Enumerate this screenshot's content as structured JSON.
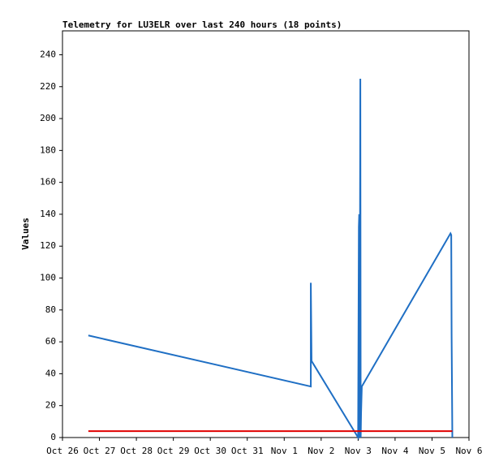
{
  "chart_data": {
    "type": "line",
    "title": "Telemetry for LU3ELR over last 240 hours (18 points)",
    "y_label": "Values",
    "series": [
      {
        "color": "#1f6fc4",
        "x": [
          0.7,
          6.72,
          6.72,
          6.74,
          8.0,
          8.02,
          8.03,
          8.04,
          8.06,
          8.07,
          8.08,
          8.1,
          10.5,
          10.52,
          10.53,
          10.55
        ],
        "values": [
          64,
          32,
          97,
          48,
          0,
          132,
          140,
          0,
          225,
          0,
          15,
          32,
          128,
          127,
          64,
          0
        ]
      },
      {
        "color": "#e00000",
        "x": [
          0.7,
          10.55
        ],
        "values": [
          4,
          4
        ]
      }
    ],
    "xlim": [
      0,
      11
    ],
    "xticks": [
      {
        "value": 0,
        "label": "Oct 26"
      },
      {
        "value": 1,
        "label": "Oct 27"
      },
      {
        "value": 2,
        "label": "Oct 28"
      },
      {
        "value": 3,
        "label": "Oct 29"
      },
      {
        "value": 4,
        "label": "Oct 30"
      },
      {
        "value": 5,
        "label": "Oct 31"
      },
      {
        "value": 6,
        "label": "Nov 1"
      },
      {
        "value": 7,
        "label": "Nov 2"
      },
      {
        "value": 8,
        "label": "Nov 3"
      },
      {
        "value": 9,
        "label": "Nov 4"
      },
      {
        "value": 10,
        "label": "Nov 5"
      },
      {
        "value": 11,
        "label": "Nov 6"
      }
    ],
    "ylim": [
      0,
      255
    ],
    "yticks": [
      0,
      20,
      40,
      60,
      80,
      100,
      120,
      140,
      160,
      180,
      200,
      220,
      240
    ]
  }
}
